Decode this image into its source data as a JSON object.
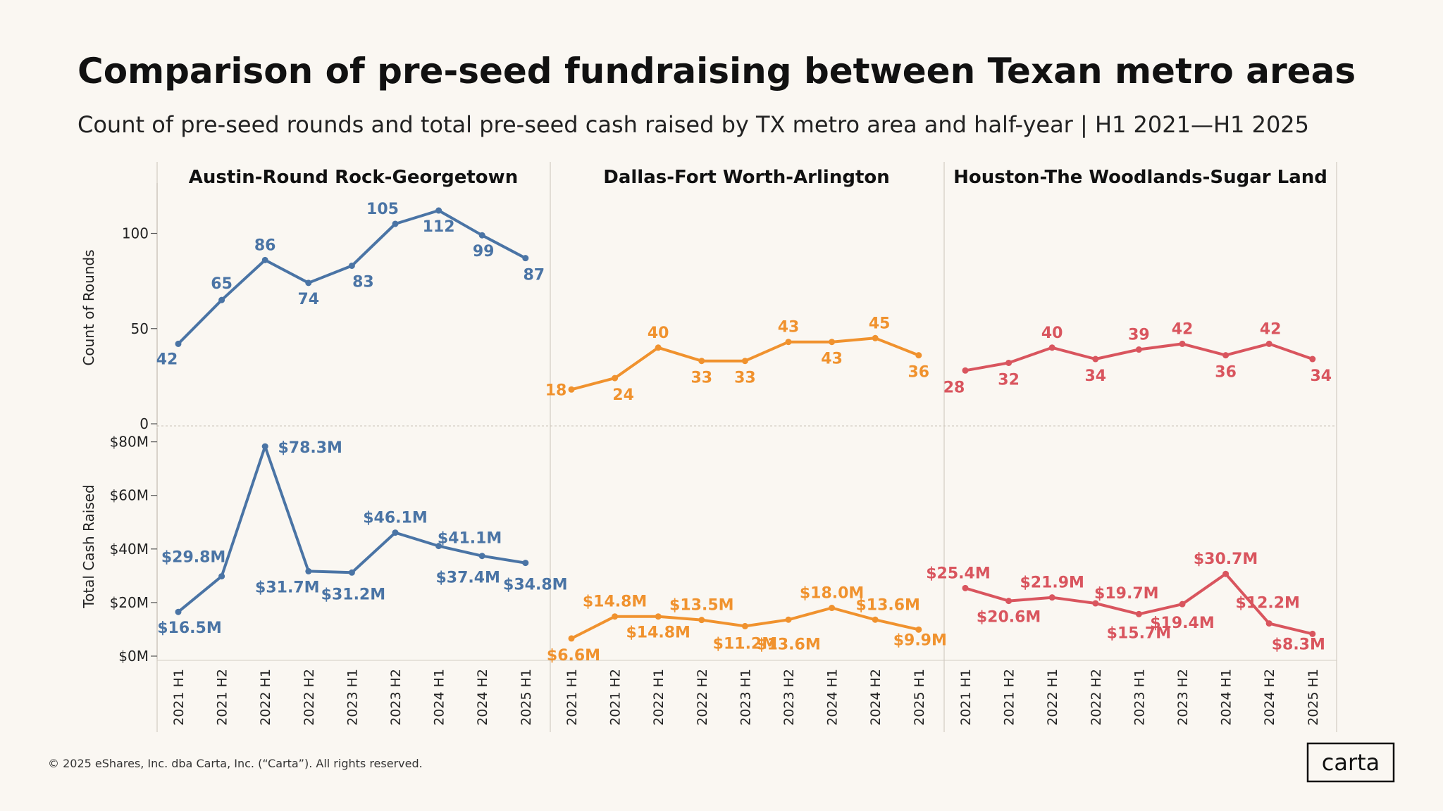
{
  "header": {
    "title": "Comparison of pre-seed fundraising between Texan metro areas",
    "subtitle": "Count of pre-seed rounds and total pre-seed cash raised by TX metro area and half-year | H1 2021—H1 2025"
  },
  "footer": {
    "copyright": "© 2025 eShares, Inc. dba Carta, Inc. (“Carta”). All rights reserved.",
    "logo": "carta"
  },
  "chart_data": {
    "type": "line",
    "x": [
      "2021 H1",
      "2021 H2",
      "2022 H1",
      "2022 H2",
      "2023 H1",
      "2023 H2",
      "2024 H1",
      "2024 H2",
      "2025 H1"
    ],
    "rows": [
      {
        "ylabel": "Count of Rounds",
        "ylim": [
          0,
          122
        ],
        "ticks": [
          0,
          50,
          100
        ],
        "tick_labels": [
          "0",
          "50",
          "100"
        ]
      },
      {
        "ylabel": "Total Cash Raised",
        "ylim": [
          0,
          82
        ],
        "ticks": [
          0,
          20,
          40,
          60,
          80
        ],
        "tick_labels": [
          "$0M",
          "$20M",
          "$40M",
          "$60M",
          "$80M"
        ]
      }
    ],
    "panels": [
      {
        "name": "Austin-Round Rock-Georgetown",
        "color": "#4a74a5",
        "rounds": [
          42,
          65,
          86,
          74,
          83,
          105,
          112,
          99,
          87
        ],
        "rounds_labels": [
          "42",
          "65",
          "86",
          "74",
          "83",
          "105",
          "112",
          "99",
          "87"
        ],
        "cash": [
          16.5,
          29.8,
          78.3,
          31.7,
          31.2,
          46.1,
          41.1,
          37.4,
          34.8
        ],
        "cash_labels": [
          "$16.5M",
          "$29.8M",
          "$78.3M",
          "$31.7M",
          "$31.2M",
          "$46.1M",
          "$41.1M",
          "$37.4M",
          "$34.8M"
        ]
      },
      {
        "name": "Dallas-Fort Worth-Arlington",
        "color": "#f0922e",
        "rounds": [
          18,
          24,
          40,
          33,
          33,
          43,
          43,
          45,
          36
        ],
        "rounds_labels": [
          "18",
          "24",
          "40",
          "33",
          "33",
          "43",
          "43",
          "45",
          "36"
        ],
        "cash": [
          6.6,
          14.8,
          14.8,
          13.5,
          11.2,
          13.6,
          18.0,
          13.6,
          9.9
        ],
        "cash_labels": [
          "$6.6M",
          "$14.8M",
          "$14.8M",
          "$13.5M",
          "$11.2M",
          "$13.6M",
          "$18.0M",
          "$13.6M",
          "$9.9M"
        ]
      },
      {
        "name": "Houston-The Woodlands-Sugar Land",
        "color": "#d9555e",
        "rounds": [
          28,
          32,
          40,
          34,
          39,
          42,
          36,
          42,
          34
        ],
        "rounds_labels": [
          "28",
          "32",
          "40",
          "34",
          "39",
          "42",
          "36",
          "42",
          "34"
        ],
        "cash": [
          25.4,
          20.6,
          21.9,
          19.7,
          15.7,
          19.4,
          30.7,
          12.2,
          8.3
        ],
        "cash_labels": [
          "$25.4M",
          "$20.6M",
          "$21.9M",
          "$19.7M",
          "$15.7M",
          "$19.4M",
          "$30.7M",
          "$12.2M",
          "$8.3M"
        ]
      }
    ]
  }
}
